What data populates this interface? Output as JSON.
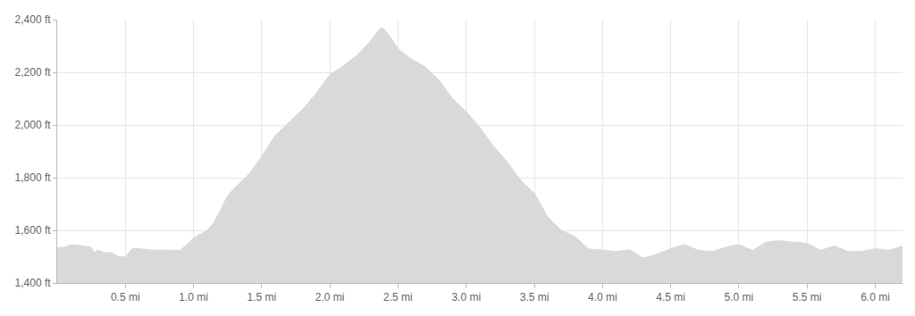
{
  "chart_data": {
    "type": "area",
    "color": "#d9d9d9",
    "grid": true,
    "x": [
      0.0,
      0.05,
      0.1,
      0.2,
      0.25,
      0.27,
      0.3,
      0.35,
      0.4,
      0.45,
      0.5,
      0.55,
      0.6,
      0.7,
      0.8,
      0.9,
      0.95,
      1.0,
      1.1,
      1.15,
      1.2,
      1.25,
      1.3,
      1.4,
      1.5,
      1.6,
      1.7,
      1.8,
      1.9,
      2.0,
      2.1,
      2.2,
      2.3,
      2.38,
      2.45,
      2.5,
      2.6,
      2.7,
      2.8,
      2.9,
      3.0,
      3.1,
      3.2,
      3.3,
      3.4,
      3.5,
      3.6,
      3.7,
      3.8,
      3.9,
      4.0,
      4.1,
      4.2,
      4.3,
      4.4,
      4.5,
      4.6,
      4.7,
      4.8,
      4.9,
      5.0,
      5.1,
      5.2,
      5.3,
      5.4,
      5.5,
      5.6,
      5.7,
      5.8,
      5.9,
      6.0,
      6.1,
      6.2
    ],
    "values": [
      1535,
      1535,
      1545,
      1540,
      1535,
      1515,
      1525,
      1515,
      1515,
      1500,
      1500,
      1530,
      1530,
      1525,
      1525,
      1525,
      1545,
      1570,
      1600,
      1630,
      1680,
      1730,
      1760,
      1810,
      1880,
      1960,
      2010,
      2060,
      2120,
      2190,
      2225,
      2265,
      2320,
      2370,
      2330,
      2290,
      2250,
      2220,
      2170,
      2100,
      2050,
      1990,
      1920,
      1860,
      1790,
      1740,
      1650,
      1600,
      1575,
      1530,
      1525,
      1520,
      1525,
      1495,
      1510,
      1530,
      1545,
      1525,
      1520,
      1535,
      1545,
      1525,
      1555,
      1560,
      1555,
      1550,
      1525,
      1540,
      1520,
      1520,
      1530,
      1525,
      1540
    ],
    "xlim": [
      0,
      6.2
    ],
    "xticks": [
      {
        "value": 0.5,
        "label": "0.5 mi"
      },
      {
        "value": 1.0,
        "label": "1.0 mi"
      },
      {
        "value": 1.5,
        "label": "1.5 mi"
      },
      {
        "value": 2.0,
        "label": "2.0 mi"
      },
      {
        "value": 2.5,
        "label": "2.5 mi"
      },
      {
        "value": 3.0,
        "label": "3.0 mi"
      },
      {
        "value": 3.5,
        "label": "3.5 mi"
      },
      {
        "value": 4.0,
        "label": "4.0 mi"
      },
      {
        "value": 4.5,
        "label": "4.5 mi"
      },
      {
        "value": 5.0,
        "label": "5.0 mi"
      },
      {
        "value": 5.5,
        "label": "5.5 mi"
      },
      {
        "value": 6.0,
        "label": "6.0 mi"
      }
    ],
    "ylim": [
      1400,
      2400
    ],
    "yticks": [
      {
        "value": 1400,
        "label": "1,400 ft"
      },
      {
        "value": 1600,
        "label": "1,600 ft"
      },
      {
        "value": 1800,
        "label": "1,800 ft"
      },
      {
        "value": 2000,
        "label": "2,000 ft"
      },
      {
        "value": 2200,
        "label": "2,200 ft"
      },
      {
        "value": 2400,
        "label": "2,400 ft"
      }
    ]
  }
}
